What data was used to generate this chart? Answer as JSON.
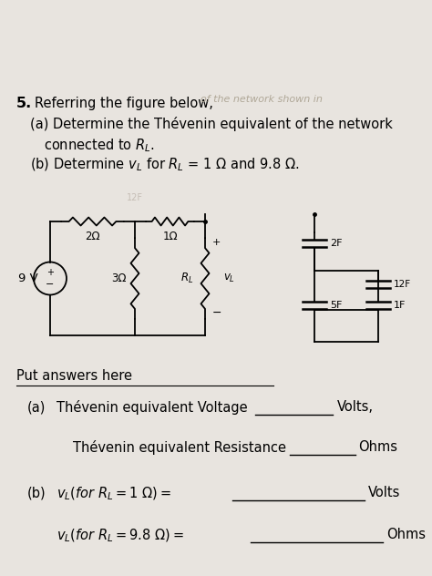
{
  "bg_color": "#e8e4df",
  "white_area_color": "#f0eeeb",
  "title_num": "5.",
  "problem_line1": "Referring the figure below,",
  "problem_ghost": "of the network shown in",
  "problem_a1": "(a) Determine the Thévenin equivalent of the network",
  "problem_a2": "      connected to $R_L$.",
  "problem_b": "(b) Determine $v_L$ for $R_L$ = 1 Ω and 9.8 Ω.",
  "circuit": {
    "voltage_source": "9 V",
    "R1_label": "2Ω",
    "R2_label": "1Ω",
    "R3_label": "3Ω",
    "RL_label": "$R_L$",
    "vL_label": "$v_L$",
    "C1_label": "2F",
    "C2_label": "12F",
    "C3_label": "5F",
    "C4_label": "1F"
  },
  "answers_header": "Put answers here",
  "a_label": "(a)",
  "thevenin_voltage_text": "Thévenin equivalent Voltage",
  "thevenin_voltage_unit": "Volts,",
  "thevenin_resistance_text": "Thévenin equivalent Resistance",
  "thevenin_resistance_unit": "Ohms",
  "b_label": "(b)",
  "vl_1_text": "$v_L(for\\ R_L=1\\ \\Omega)=$",
  "vl_1_unit": "Volts",
  "vl_98_text": "$v_L(for\\ R_L=9.8\\ \\Omega)=$",
  "vl_98_unit": "Ohms"
}
